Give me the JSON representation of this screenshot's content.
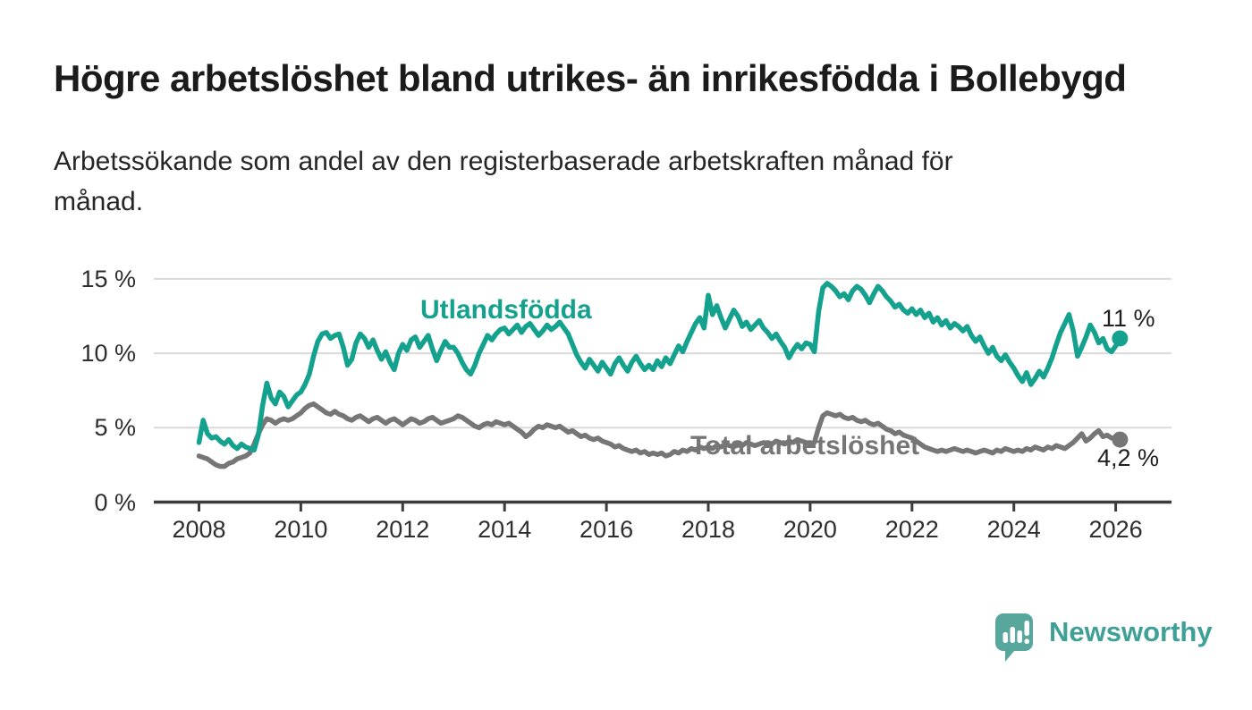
{
  "header": {
    "title": "Högre arbetslöshet bland utrikes- än inrikesfödda i Bollebygd",
    "subtitle_lines": [
      "Arbetssökande som andel av den registerbaserade arbetskraften månad för",
      "månad."
    ]
  },
  "chart_data": {
    "type": "line",
    "title": "Högre arbetslöshet bland utrikes- än inrikesfödda i Bollebygd",
    "subtitle": "Arbetssökande som andel av den registerbaserade arbetskraften månad för månad.",
    "unit": "%",
    "frequency": "monthly",
    "x_start": "2008-01",
    "x_end": "2026-02",
    "ylim": [
      0,
      15
    ],
    "grid": "horizontal",
    "legend_position": "inline-labels",
    "y_tick_labels": [
      "15 %",
      "10 %",
      "5 %",
      "0 %"
    ],
    "x_tick_labels": [
      "2008",
      "2010",
      "2012",
      "2014",
      "2016",
      "2018",
      "2020",
      "2022",
      "2024",
      "2026"
    ],
    "series": [
      {
        "name": "Utlandsfödda",
        "color": "#14a18d",
        "end_value_label": "11 %",
        "values": [
          4.0,
          5.5,
          4.6,
          4.3,
          4.4,
          4.1,
          3.9,
          4.2,
          3.8,
          3.6,
          3.9,
          3.7,
          3.6,
          3.5,
          4.5,
          6.5,
          8.0,
          7.0,
          6.6,
          7.4,
          7.1,
          6.4,
          6.8,
          7.2,
          7.4,
          7.9,
          8.6,
          9.8,
          10.8,
          11.3,
          11.4,
          11.0,
          11.2,
          11.3,
          10.4,
          9.2,
          9.6,
          10.7,
          11.3,
          11.0,
          10.4,
          10.9,
          10.2,
          9.6,
          10.1,
          9.4,
          8.9,
          10.0,
          10.6,
          10.2,
          10.9,
          11.1,
          10.4,
          10.8,
          11.2,
          10.3,
          9.5,
          10.2,
          10.8,
          10.4,
          10.4,
          10.0,
          9.4,
          8.9,
          8.6,
          9.2,
          10.0,
          10.6,
          11.2,
          10.9,
          11.3,
          11.6,
          11.7,
          11.3,
          11.6,
          11.9,
          11.4,
          11.8,
          12.0,
          11.6,
          11.2,
          11.5,
          11.9,
          11.6,
          11.8,
          12.1,
          11.7,
          11.3,
          10.6,
          9.9,
          9.4,
          9.0,
          9.6,
          9.2,
          8.8,
          9.4,
          9.0,
          8.6,
          9.3,
          9.7,
          9.2,
          8.8,
          9.4,
          9.8,
          9.3,
          8.9,
          9.2,
          8.9,
          9.5,
          9.1,
          9.7,
          9.3,
          9.9,
          10.5,
          10.1,
          10.8,
          11.4,
          12.0,
          12.4,
          11.7,
          13.9,
          12.6,
          13.2,
          12.4,
          11.7,
          12.3,
          12.9,
          12.5,
          11.8,
          12.1,
          11.6,
          11.9,
          12.2,
          11.7,
          11.4,
          11.0,
          11.3,
          10.8,
          10.4,
          9.7,
          10.2,
          10.6,
          10.3,
          10.7,
          10.6,
          10.1,
          12.8,
          14.4,
          14.7,
          14.5,
          14.2,
          13.8,
          14.0,
          13.6,
          14.2,
          14.5,
          14.3,
          13.9,
          13.4,
          14.0,
          14.5,
          14.2,
          13.8,
          13.5,
          13.1,
          13.3,
          12.9,
          12.7,
          13.0,
          12.6,
          12.9,
          12.4,
          12.7,
          12.1,
          12.4,
          11.9,
          12.2,
          11.7,
          12.0,
          11.8,
          11.5,
          11.8,
          11.2,
          10.8,
          11.1,
          10.5,
          10.0,
          10.4,
          9.8,
          9.5,
          9.9,
          9.4,
          9.0,
          8.5,
          8.1,
          8.7,
          7.9,
          8.3,
          8.8,
          8.4,
          9.0,
          9.7,
          10.6,
          11.4,
          12.0,
          12.6,
          11.5,
          9.8,
          10.4,
          11.1,
          11.9,
          11.4,
          10.7,
          11.0,
          10.3,
          10.1,
          10.5,
          11.0
        ]
      },
      {
        "name": "Total arbetslöshet",
        "color": "#767676",
        "end_value_label": "4,2 %",
        "values": [
          3.1,
          3.0,
          2.9,
          2.7,
          2.5,
          2.4,
          2.4,
          2.6,
          2.7,
          2.9,
          3.0,
          3.1,
          3.3,
          3.9,
          4.6,
          5.2,
          5.6,
          5.5,
          5.3,
          5.5,
          5.6,
          5.5,
          5.6,
          5.8,
          6.0,
          6.3,
          6.5,
          6.6,
          6.4,
          6.2,
          6.0,
          5.9,
          6.1,
          5.9,
          5.8,
          5.6,
          5.5,
          5.7,
          5.8,
          5.6,
          5.4,
          5.6,
          5.7,
          5.5,
          5.3,
          5.5,
          5.6,
          5.4,
          5.2,
          5.4,
          5.6,
          5.5,
          5.3,
          5.4,
          5.6,
          5.7,
          5.5,
          5.3,
          5.4,
          5.5,
          5.6,
          5.8,
          5.7,
          5.5,
          5.3,
          5.1,
          5.0,
          5.2,
          5.3,
          5.2,
          5.4,
          5.3,
          5.2,
          5.3,
          5.1,
          4.9,
          4.7,
          4.4,
          4.6,
          4.9,
          5.1,
          5.0,
          5.2,
          5.1,
          5.0,
          5.1,
          4.9,
          4.7,
          4.8,
          4.6,
          4.4,
          4.5,
          4.3,
          4.2,
          4.3,
          4.1,
          4.0,
          3.9,
          3.7,
          3.8,
          3.6,
          3.5,
          3.4,
          3.5,
          3.3,
          3.4,
          3.2,
          3.3,
          3.2,
          3.3,
          3.1,
          3.2,
          3.4,
          3.3,
          3.5,
          3.4,
          3.6,
          3.5,
          3.7,
          3.6,
          3.7,
          3.6,
          3.8,
          3.7,
          3.9,
          3.8,
          3.7,
          3.9,
          3.8,
          4.0,
          3.9,
          3.8,
          3.9,
          4.0,
          3.8,
          3.9,
          4.1,
          4.0,
          3.9,
          4.1,
          4.0,
          4.2,
          4.1,
          4.0,
          3.9,
          4.0,
          5.0,
          5.8,
          6.0,
          5.9,
          5.8,
          5.9,
          5.7,
          5.6,
          5.7,
          5.5,
          5.4,
          5.5,
          5.3,
          5.2,
          5.3,
          5.1,
          4.9,
          4.8,
          4.6,
          4.7,
          4.5,
          4.4,
          4.3,
          4.1,
          3.9,
          3.7,
          3.6,
          3.5,
          3.4,
          3.5,
          3.4,
          3.5,
          3.6,
          3.5,
          3.4,
          3.5,
          3.4,
          3.3,
          3.4,
          3.5,
          3.4,
          3.3,
          3.5,
          3.4,
          3.6,
          3.5,
          3.4,
          3.5,
          3.4,
          3.6,
          3.5,
          3.7,
          3.6,
          3.5,
          3.7,
          3.6,
          3.8,
          3.7,
          3.6,
          3.8,
          4.0,
          4.3,
          4.6,
          4.1,
          4.3,
          4.6,
          4.8,
          4.4,
          4.5,
          4.3,
          4.3,
          4.2
        ]
      }
    ],
    "colors": {
      "series_foreign_born": "#14a18d",
      "series_total": "#767676",
      "gridline": "#dadada",
      "axis": "#3c3c3c",
      "text": "#2e2e2e"
    }
  },
  "annotations": {
    "foreign_born_label": "Utlandsfödda",
    "total_label": "Total arbetslöshet",
    "foreign_born_end_value": "11 %",
    "total_end_value": "4,2 %"
  },
  "footer": {
    "brand": "Newsworthy",
    "logo_icon": "bar-chart-speech-bubble-icon"
  }
}
